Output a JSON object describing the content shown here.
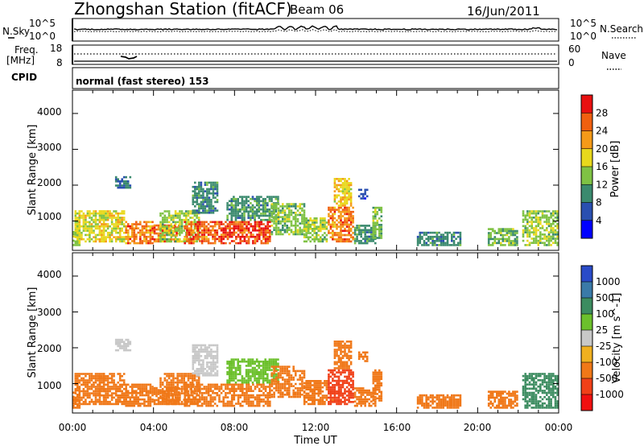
{
  "header": {
    "station": "Zhongshan Station (fitACF)",
    "beam": "Beam 06",
    "date": "16/Jun/2011"
  },
  "top_panel": {
    "left_label": "N.Sky",
    "right_label": "N.Search",
    "left_ticks": [
      "10^5",
      "10^0"
    ],
    "right_ticks": [
      "10^5",
      "10^0"
    ]
  },
  "freq_panel": {
    "left_label_line1": "Freq.",
    "left_label_line2": "[MHz]",
    "right_label": "Nave",
    "left_ticks": [
      "18",
      "8"
    ],
    "right_ticks": [
      "60",
      "0"
    ]
  },
  "cpid": {
    "label": "CPID",
    "mode": "normal (fast stereo) 153"
  },
  "axes": {
    "ylabel": "Slant Range [km]",
    "xlabel": "Time UT",
    "y_ticks": [
      "1000",
      "2000",
      "3000",
      "4000"
    ],
    "x_ticks": [
      "00:00",
      "04:00",
      "08:00",
      "12:00",
      "16:00",
      "20:00",
      "00:00"
    ]
  },
  "chart_data": [
    {
      "type": "heatmap",
      "name": "power",
      "x_range_hours": [
        0,
        24
      ],
      "y_range_km": [
        180,
        4650
      ],
      "colorbar": {
        "label": "Power [dB]",
        "ticks": [
          "4",
          "8",
          "12",
          "16",
          "20",
          "24",
          "28"
        ],
        "range": [
          0,
          30
        ],
        "colors": [
          "#0000ff",
          "#2a4fb0",
          "#3b8a6e",
          "#7fc244",
          "#e8d81c",
          "#f59a18",
          "#f06010",
          "#e81010"
        ]
      },
      "blobs": [
        {
          "t0": 0.0,
          "t1": 0.4,
          "r0": 300,
          "r1": 900,
          "v": 14
        },
        {
          "t0": 0.1,
          "t1": 1.6,
          "r0": 400,
          "r1": 1300,
          "v": 16
        },
        {
          "t0": 1.3,
          "t1": 2.6,
          "r0": 400,
          "r1": 1300,
          "v": 17
        },
        {
          "t0": 2.1,
          "t1": 2.9,
          "r0": 1900,
          "r1": 2250,
          "v": 8
        },
        {
          "t0": 2.6,
          "t1": 4.0,
          "r0": 350,
          "r1": 1000,
          "v": 22
        },
        {
          "t0": 4.0,
          "t1": 5.3,
          "r0": 400,
          "r1": 900,
          "v": 24
        },
        {
          "t0": 4.3,
          "t1": 6.3,
          "r0": 400,
          "r1": 1300,
          "v": 14
        },
        {
          "t0": 5.5,
          "t1": 7.2,
          "r0": 350,
          "r1": 1000,
          "v": 24
        },
        {
          "t0": 5.9,
          "t1": 7.2,
          "r0": 1200,
          "r1": 2100,
          "v": 9
        },
        {
          "t0": 7.2,
          "t1": 9.8,
          "r0": 350,
          "r1": 1000,
          "v": 26
        },
        {
          "t0": 7.6,
          "t1": 10.2,
          "r0": 1000,
          "r1": 1700,
          "v": 10
        },
        {
          "t0": 9.8,
          "t1": 11.5,
          "r0": 600,
          "r1": 1500,
          "v": 13
        },
        {
          "t0": 11.4,
          "t1": 12.6,
          "r0": 400,
          "r1": 1100,
          "v": 14
        },
        {
          "t0": 12.6,
          "t1": 13.9,
          "r0": 400,
          "r1": 1400,
          "v": 23
        },
        {
          "t0": 12.9,
          "t1": 13.8,
          "r0": 1400,
          "r1": 2200,
          "v": 18
        },
        {
          "t0": 13.9,
          "t1": 15.0,
          "r0": 350,
          "r1": 900,
          "v": 10
        },
        {
          "t0": 14.1,
          "t1": 14.6,
          "r0": 1600,
          "r1": 1900,
          "v": 5
        },
        {
          "t0": 14.8,
          "t1": 15.3,
          "r0": 500,
          "r1": 1400,
          "v": 13
        },
        {
          "t0": 17.0,
          "t1": 19.2,
          "r0": 300,
          "r1": 700,
          "v": 9
        },
        {
          "t0": 20.5,
          "t1": 22.0,
          "r0": 300,
          "r1": 800,
          "v": 12
        },
        {
          "t0": 22.2,
          "t1": 24.0,
          "r0": 300,
          "r1": 1300,
          "v": 14
        }
      ]
    },
    {
      "type": "heatmap",
      "name": "velocity",
      "x_range_hours": [
        0,
        24
      ],
      "y_range_km": [
        180,
        4650
      ],
      "colorbar": {
        "label": "Velocity [m s^-1]",
        "ticks": [
          "1000",
          "500",
          "100",
          "25",
          "-25",
          "-100",
          "-500",
          "-1000"
        ],
        "range": [
          -1200,
          1200
        ],
        "colors": [
          "#2a4bc8",
          "#3a7aa8",
          "#3c8c60",
          "#6cc02c",
          "#c8c8c8",
          "#f0b020",
          "#f07818",
          "#f04018",
          "#f01010"
        ]
      },
      "blobs": [
        {
          "t0": 0.0,
          "t1": 0.4,
          "r0": 300,
          "r1": 900,
          "v": -150
        },
        {
          "t0": 0.1,
          "t1": 1.6,
          "r0": 400,
          "r1": 1300,
          "v": -300
        },
        {
          "t0": 1.3,
          "t1": 2.6,
          "r0": 400,
          "r1": 1300,
          "v": -350
        },
        {
          "t0": 2.1,
          "t1": 2.9,
          "r0": 1900,
          "r1": 2250,
          "v": 10
        },
        {
          "t0": 2.6,
          "t1": 4.0,
          "r0": 350,
          "r1": 1000,
          "v": -400
        },
        {
          "t0": 4.0,
          "t1": 5.3,
          "r0": 400,
          "r1": 900,
          "v": -380
        },
        {
          "t0": 4.3,
          "t1": 6.3,
          "r0": 400,
          "r1": 1300,
          "v": -320
        },
        {
          "t0": 5.5,
          "t1": 7.2,
          "r0": 350,
          "r1": 1000,
          "v": -420
        },
        {
          "t0": 5.9,
          "t1": 7.2,
          "r0": 1200,
          "r1": 2100,
          "v": 15
        },
        {
          "t0": 7.2,
          "t1": 9.8,
          "r0": 350,
          "r1": 1000,
          "v": -350
        },
        {
          "t0": 7.6,
          "t1": 10.2,
          "r0": 1000,
          "r1": 1700,
          "v": 60
        },
        {
          "t0": 9.8,
          "t1": 11.5,
          "r0": 600,
          "r1": 1500,
          "v": -200
        },
        {
          "t0": 11.4,
          "t1": 12.6,
          "r0": 400,
          "r1": 1100,
          "v": -300
        },
        {
          "t0": 12.6,
          "t1": 13.9,
          "r0": 400,
          "r1": 1400,
          "v": -600
        },
        {
          "t0": 12.9,
          "t1": 13.8,
          "r0": 1400,
          "r1": 2200,
          "v": -250
        },
        {
          "t0": 13.9,
          "t1": 15.0,
          "r0": 350,
          "r1": 900,
          "v": -200
        },
        {
          "t0": 14.1,
          "t1": 14.6,
          "r0": 1600,
          "r1": 1900,
          "v": -400
        },
        {
          "t0": 14.8,
          "t1": 15.3,
          "r0": 500,
          "r1": 1400,
          "v": -300
        },
        {
          "t0": 17.0,
          "t1": 19.2,
          "r0": 300,
          "r1": 700,
          "v": -200
        },
        {
          "t0": 20.5,
          "t1": 22.0,
          "r0": 300,
          "r1": 800,
          "v": -150
        },
        {
          "t0": 22.2,
          "t1": 24.0,
          "r0": 300,
          "r1": 1300,
          "v": 400
        }
      ]
    }
  ]
}
